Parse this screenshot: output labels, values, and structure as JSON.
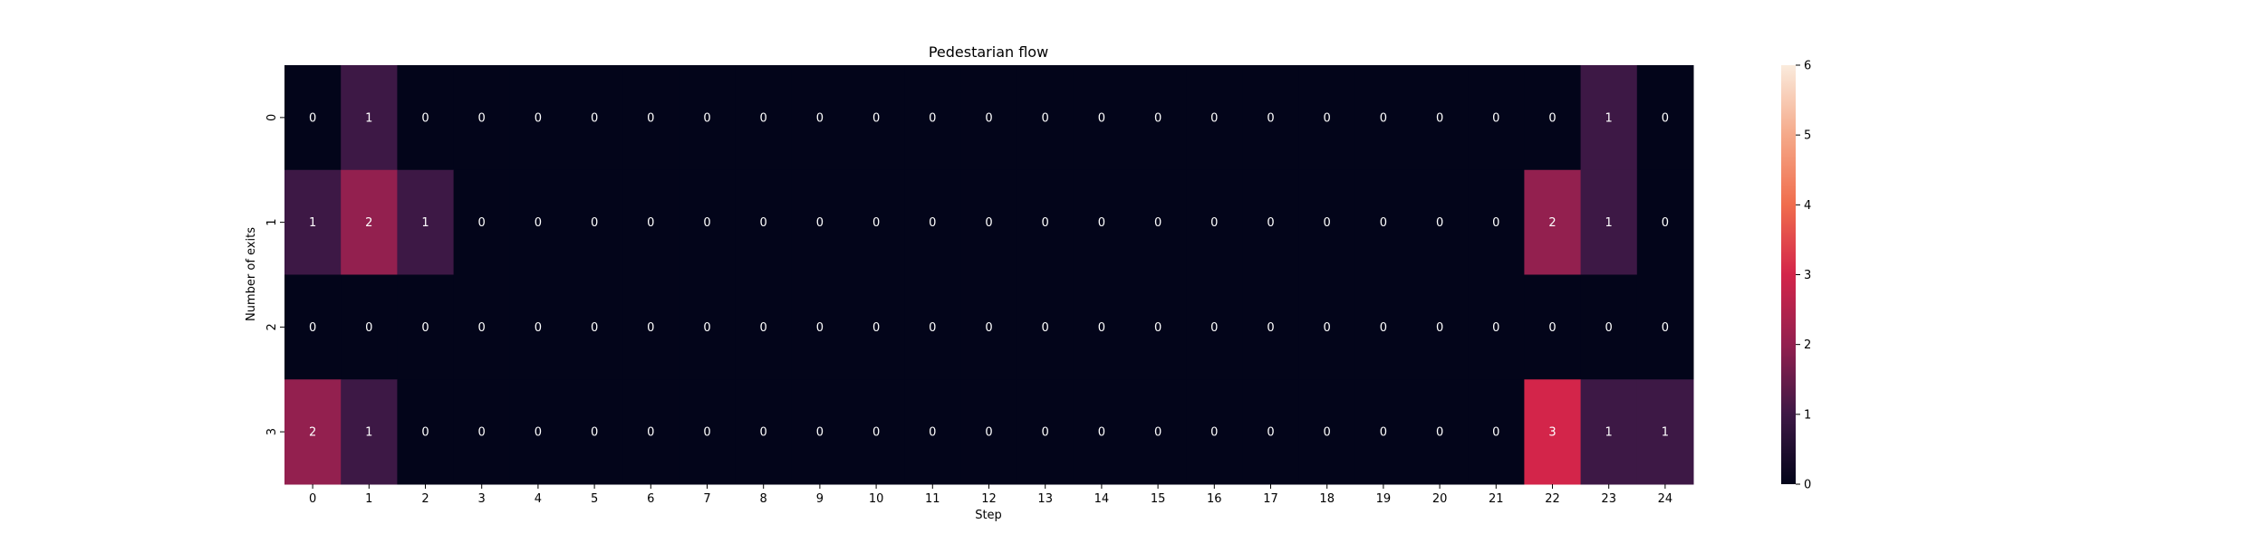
{
  "chart_data": {
    "type": "heatmap",
    "title": "Pedestarian flow",
    "xlabel": "Step",
    "ylabel": "Number of exits",
    "x_categories": [
      "0",
      "1",
      "2",
      "3",
      "4",
      "5",
      "6",
      "7",
      "8",
      "9",
      "10",
      "11",
      "12",
      "13",
      "14",
      "15",
      "16",
      "17",
      "18",
      "19",
      "20",
      "21",
      "22",
      "23",
      "24"
    ],
    "y_categories": [
      "0",
      "1",
      "2",
      "3"
    ],
    "values": [
      [
        0,
        1,
        0,
        0,
        0,
        0,
        0,
        0,
        0,
        0,
        0,
        0,
        0,
        0,
        0,
        0,
        0,
        0,
        0,
        0,
        0,
        0,
        0,
        1,
        0
      ],
      [
        1,
        2,
        1,
        0,
        0,
        0,
        0,
        0,
        0,
        0,
        0,
        0,
        0,
        0,
        0,
        0,
        0,
        0,
        0,
        0,
        0,
        0,
        2,
        1,
        0
      ],
      [
        0,
        0,
        0,
        0,
        0,
        0,
        0,
        0,
        0,
        0,
        0,
        0,
        0,
        0,
        0,
        0,
        0,
        0,
        0,
        0,
        0,
        0,
        0,
        0,
        0
      ],
      [
        2,
        1,
        0,
        0,
        0,
        0,
        0,
        0,
        0,
        0,
        0,
        0,
        0,
        0,
        0,
        0,
        0,
        0,
        0,
        0,
        0,
        0,
        3,
        1,
        1
      ]
    ],
    "annotations": true,
    "colorbar": {
      "range": [
        0,
        6
      ],
      "ticks": [
        "0",
        "1",
        "2",
        "3",
        "4",
        "5",
        "6"
      ],
      "colormap": "rocket"
    },
    "colors": {
      "c0": "#03051a",
      "c1": "#3d1845",
      "c2": "#93204f",
      "c3": "#d3254a",
      "c4": "#f06d4d",
      "c5": "#f5a989",
      "c6": "#faebdd"
    }
  }
}
